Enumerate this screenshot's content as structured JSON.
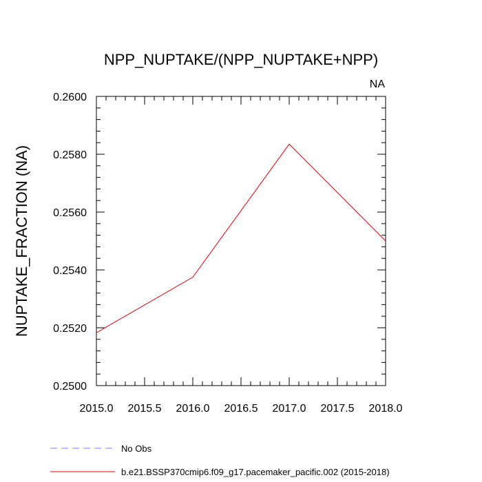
{
  "chart_data": {
    "type": "line",
    "title": "NPP_NUPTAKE/(NPP_NUPTAKE+NPP)",
    "corner_label": "NA",
    "xlabel": "",
    "ylabel": "NUPTAKE_FRACTION  (NA)",
    "xlim": [
      2015.0,
      2018.0
    ],
    "ylim": [
      0.25,
      0.26
    ],
    "x_ticks": [
      2015.0,
      2015.5,
      2016.0,
      2016.5,
      2017.0,
      2017.5,
      2018.0
    ],
    "x_tick_labels": [
      "2015.0",
      "2015.5",
      "2016.0",
      "2016.5",
      "2017.0",
      "2017.5",
      "2018.0"
    ],
    "y_ticks": [
      0.25,
      0.252,
      0.254,
      0.256,
      0.258,
      0.26
    ],
    "y_tick_labels": [
      "0.2500",
      "0.2520",
      "0.2540",
      "0.2560",
      "0.2580",
      "0.2600"
    ],
    "grid": false,
    "legend_position": "bottom",
    "series": [
      {
        "name": "No Obs",
        "color": "#7b7bff",
        "dash": "dashed",
        "x": [],
        "y": []
      },
      {
        "name": "b.e21.BSSP370cmip6.f09_g17.pacemaker_pacific.002 (2015-2018)",
        "color": "#e8000b",
        "dash": "solid",
        "x": [
          2015.0,
          2016.0,
          2017.0,
          2018.0
        ],
        "y": [
          0.25183,
          0.25375,
          0.25835,
          0.255
        ]
      }
    ]
  }
}
